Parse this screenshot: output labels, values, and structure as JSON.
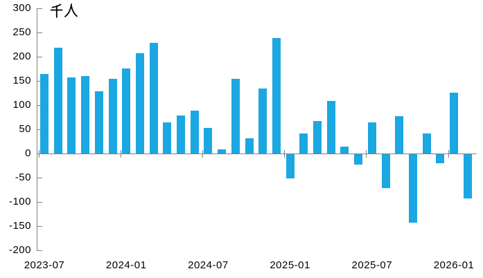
{
  "chart_data": {
    "type": "bar",
    "title": "",
    "unit_label": "千人",
    "categories": [
      "2023-07",
      "2023-08",
      "2023-09",
      "2023-10",
      "2023-11",
      "2023-12",
      "2024-01",
      "2024-02",
      "2024-03",
      "2024-04",
      "2024-05",
      "2024-06",
      "2024-07",
      "2024-08",
      "2024-09",
      "2024-10",
      "2024-11",
      "2024-12",
      "2025-01",
      "2025-02",
      "2025-03",
      "2025-04",
      "2025-05",
      "2025-06",
      "2025-07",
      "2025-08",
      "2025-09",
      "2025-10",
      "2025-11",
      "2025-12",
      "2026-01",
      "2026-02"
    ],
    "values": [
      164,
      218,
      157,
      160,
      128,
      155,
      176,
      207,
      228,
      65,
      79,
      88,
      53,
      9,
      155,
      32,
      134,
      238,
      -50,
      42,
      67,
      109,
      14,
      -21,
      64,
      -70,
      77,
      -142,
      41,
      -19,
      126,
      -92
    ],
    "x_tick_labels": [
      "2023-07",
      "2024-01",
      "2024-07",
      "2025-01",
      "2025-07",
      "2026-01"
    ],
    "y_ticks": [
      300,
      250,
      200,
      150,
      100,
      50,
      0,
      -50,
      -100,
      -150,
      -200
    ],
    "ylim": [
      -200,
      300
    ],
    "xlabel": "",
    "ylabel": "",
    "grid": false,
    "legend": "none",
    "bar_color": "#1BA7E1",
    "axis_color": "#808080",
    "text_color": "#000000"
  }
}
